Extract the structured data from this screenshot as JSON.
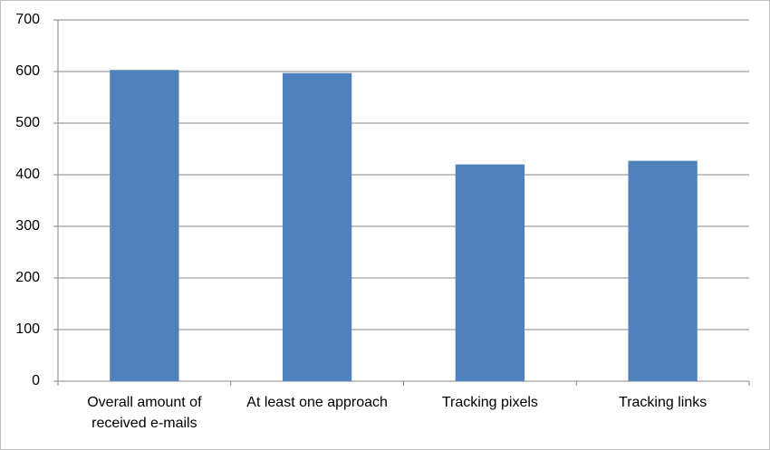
{
  "chart_data": {
    "type": "bar",
    "categories": [
      "Overall amount of received e-mails",
      "At least one approach",
      "Tracking pixels",
      "Tracking links"
    ],
    "values": [
      603,
      597,
      420,
      427
    ],
    "color": "#4f81bd",
    "ylim": [
      0,
      700
    ],
    "yticks": [
      0,
      100,
      200,
      300,
      400,
      500,
      600,
      700
    ],
    "grid": true
  }
}
